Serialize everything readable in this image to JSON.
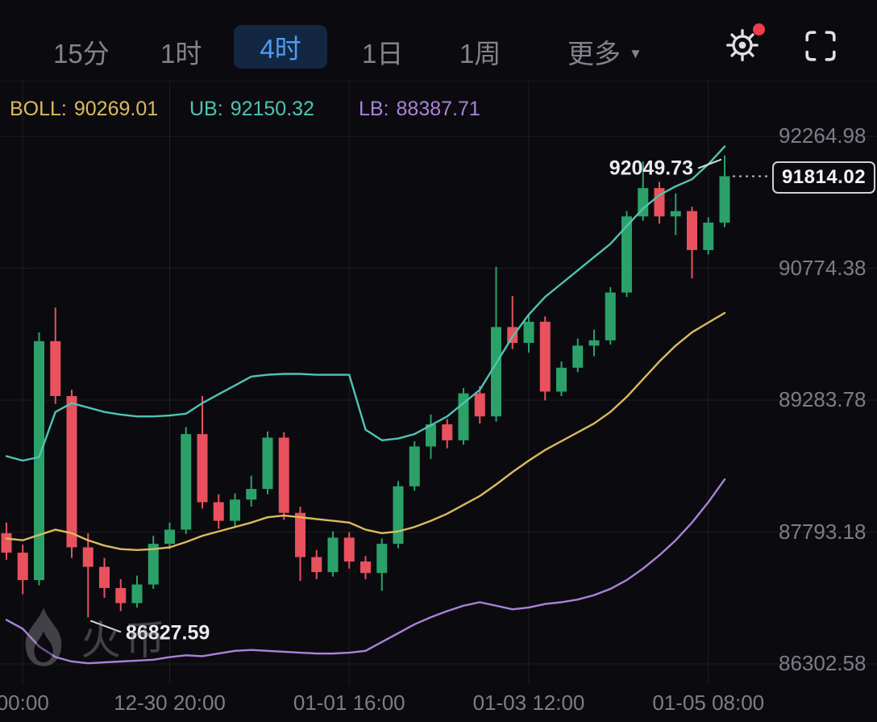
{
  "header": {
    "tabs": [
      {
        "id": "15m",
        "label": "15分",
        "active": false
      },
      {
        "id": "1h",
        "label": "1时",
        "active": false
      },
      {
        "id": "4h",
        "label": "4时",
        "active": true
      },
      {
        "id": "1d",
        "label": "1日",
        "active": false
      },
      {
        "id": "1w",
        "label": "1周",
        "active": false
      }
    ],
    "more_label": "更多",
    "settings_has_notification": true
  },
  "indicators": [
    {
      "name": "BOLL:",
      "value": "90269.01",
      "color": "#dcba5e"
    },
    {
      "name": "UB:",
      "value": "92150.32",
      "color": "#4fc4b2"
    },
    {
      "name": "LB:",
      "value": "88387.71",
      "color": "#aa82da"
    }
  ],
  "annotations": {
    "high_label": "92049.73",
    "low_label": "86827.59",
    "last_price": "91814.02"
  },
  "watermark": {
    "brand": "火币"
  },
  "colors": {
    "bg": "#0b0b0f",
    "grid": "#1c1c22",
    "up": "#2ba169",
    "down": "#e8515d",
    "text_muted": "#7d7d87",
    "text_bright": "#e9ebee",
    "tab_active": "#4e9cf0",
    "tab_active_bg": "#132742",
    "notification_red": "#f23c4c"
  },
  "chart_data": {
    "type": "candlestick",
    "interval": "4h",
    "title": "",
    "legend_position": "top-left",
    "grid": true,
    "price_axis_labels": [
      92264.98,
      90774.38,
      89283.78,
      87793.18,
      86302.58
    ],
    "time_axis_labels": [
      {
        "text": "00:00",
        "candle_index": 1
      },
      {
        "text": "12-30 20:00",
        "candle_index": 10
      },
      {
        "text": "01-01 16:00",
        "candle_index": 21
      },
      {
        "text": "01-03 12:00",
        "candle_index": 32
      },
      {
        "text": "01-05 08:00",
        "candle_index": 43
      }
    ],
    "high": 92049.73,
    "low": 86827.59,
    "last": 91814.02,
    "candles_ohlc": [
      [
        87780,
        87900,
        87480,
        87560
      ],
      [
        87560,
        87650,
        87090,
        87250
      ],
      [
        87250,
        90050,
        87190,
        89950
      ],
      [
        89950,
        90330,
        89240,
        89330
      ],
      [
        89330,
        89400,
        87500,
        87620
      ],
      [
        87620,
        87780,
        86827.59,
        87400
      ],
      [
        87400,
        87500,
        87050,
        87160
      ],
      [
        87160,
        87260,
        86900,
        86990
      ],
      [
        86990,
        87300,
        86940,
        87200
      ],
      [
        87200,
        87750,
        87150,
        87660
      ],
      [
        87660,
        87900,
        87600,
        87820
      ],
      [
        87820,
        88980,
        87770,
        88900
      ],
      [
        88900,
        89330,
        88060,
        88130
      ],
      [
        88130,
        88220,
        87830,
        87920
      ],
      [
        87920,
        88230,
        87860,
        88160
      ],
      [
        88160,
        88430,
        88080,
        88280
      ],
      [
        88280,
        88930,
        88220,
        88860
      ],
      [
        88860,
        88920,
        87930,
        88010
      ],
      [
        88010,
        88080,
        87240,
        87510
      ],
      [
        87510,
        87590,
        87260,
        87340
      ],
      [
        87340,
        87800,
        87290,
        87730
      ],
      [
        87730,
        87790,
        87380,
        87460
      ],
      [
        87460,
        87520,
        87260,
        87330
      ],
      [
        87330,
        87720,
        87130,
        87660
      ],
      [
        87660,
        88370,
        87610,
        88310
      ],
      [
        88310,
        88820,
        88260,
        88760
      ],
      [
        88760,
        89120,
        88620,
        89010
      ],
      [
        89010,
        89070,
        88740,
        88830
      ],
      [
        88830,
        89420,
        88780,
        89360
      ],
      [
        89360,
        89440,
        89020,
        89100
      ],
      [
        89100,
        90790,
        89040,
        90110
      ],
      [
        90110,
        90460,
        89860,
        89930
      ],
      [
        89930,
        90260,
        89820,
        90170
      ],
      [
        90170,
        90230,
        89280,
        89380
      ],
      [
        89380,
        89720,
        89330,
        89650
      ],
      [
        89650,
        89980,
        89600,
        89900
      ],
      [
        89900,
        90080,
        89780,
        89960
      ],
      [
        89960,
        90560,
        89910,
        90500
      ],
      [
        90500,
        91420,
        90450,
        91360
      ],
      [
        91360,
        91980,
        91310,
        91680
      ],
      [
        91680,
        91750,
        91280,
        91360
      ],
      [
        91360,
        91620,
        91150,
        91420
      ],
      [
        91420,
        91470,
        90660,
        90980
      ],
      [
        90980,
        91350,
        90930,
        91290
      ],
      [
        91290,
        92049.73,
        91240,
        91814.02
      ]
    ],
    "overlays": [
      {
        "name": "UB",
        "color": "#4fc4b2",
        "values": [
          88650,
          88600,
          88640,
          89150,
          89250,
          89200,
          89150,
          89120,
          89100,
          89100,
          89110,
          89130,
          89250,
          89350,
          89450,
          89550,
          89570,
          89580,
          89580,
          89570,
          89570,
          89570,
          88950,
          88830,
          88850,
          88900,
          89000,
          89100,
          89250,
          89400,
          89700,
          90000,
          90250,
          90450,
          90600,
          90750,
          90900,
          91050,
          91250,
          91450,
          91600,
          91700,
          91780,
          91950,
          92150.32
        ]
      },
      {
        "name": "BOLL",
        "color": "#dcba5e",
        "values": [
          87720,
          87700,
          87760,
          87820,
          87780,
          87700,
          87640,
          87600,
          87590,
          87600,
          87620,
          87680,
          87750,
          87800,
          87850,
          87900,
          87960,
          87980,
          87960,
          87940,
          87920,
          87900,
          87820,
          87780,
          87800,
          87850,
          87920,
          88000,
          88100,
          88200,
          88330,
          88470,
          88600,
          88720,
          88820,
          88920,
          89020,
          89150,
          89320,
          89520,
          89720,
          89900,
          90050,
          90160,
          90269.01
        ]
      },
      {
        "name": "LB",
        "color": "#aa82da",
        "values": [
          86800,
          86700,
          86500,
          86380,
          86330,
          86310,
          86320,
          86330,
          86340,
          86350,
          86380,
          86400,
          86390,
          86420,
          86450,
          86460,
          86450,
          86440,
          86430,
          86420,
          86420,
          86430,
          86450,
          86550,
          86650,
          86750,
          86830,
          86900,
          86960,
          87000,
          86960,
          86920,
          86940,
          86980,
          87000,
          87030,
          87080,
          87150,
          87250,
          87380,
          87530,
          87700,
          87900,
          88130,
          88387.71
        ]
      }
    ]
  }
}
